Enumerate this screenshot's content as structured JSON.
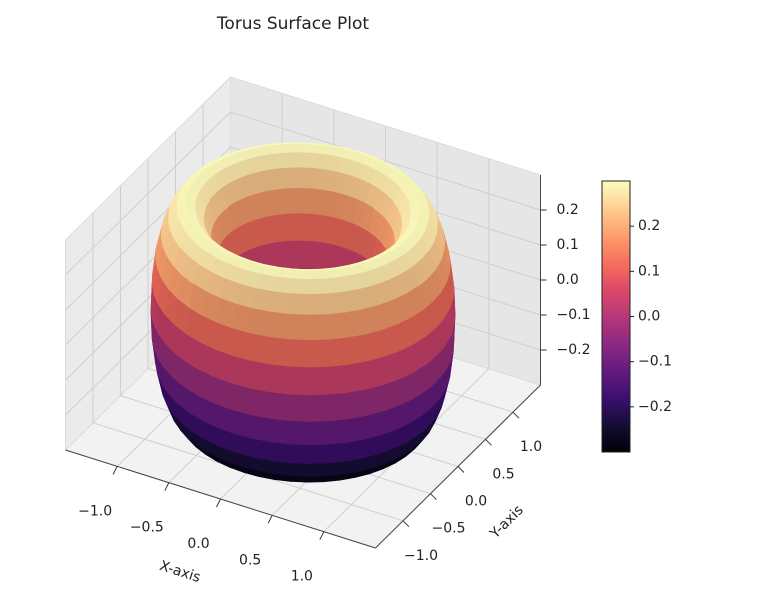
{
  "chart_data": {
    "type": "surface3d",
    "title": "Torus Surface Plot",
    "xlabel": "X-axis",
    "ylabel": "Y-axis",
    "surface": {
      "shape": "torus",
      "major_radius": 1,
      "minor_radius": 0.3
    },
    "colormap": "magma",
    "xlim": [
      -1.5,
      1.5
    ],
    "ylim": [
      -1.5,
      1.5
    ],
    "zlim": [
      -0.3,
      0.3
    ],
    "xticks": [
      {
        "value": -1,
        "label": "−1.0"
      },
      {
        "value": -0.5,
        "label": "−0.5"
      },
      {
        "value": 0,
        "label": "0.0"
      },
      0.5,
      {
        "value": 1,
        "label": "1.0"
      }
    ],
    "yticks": [
      {
        "value": -1,
        "label": "−1.0"
      },
      {
        "value": -0.5,
        "label": "−0.5"
      },
      {
        "value": 0,
        "label": "0.0"
      },
      0.5,
      {
        "value": 1,
        "label": "1.0"
      }
    ],
    "zticks": [
      {
        "value": -0.2,
        "label": "−0.2"
      },
      {
        "value": -0.1,
        "label": "−0.1"
      },
      {
        "value": 0,
        "label": "0.0"
      },
      0.1,
      0.2
    ],
    "colorbar": {
      "clim": [
        -0.3,
        0.3
      ],
      "ticks": [
        {
          "value": -0.2,
          "label": "−0.2"
        },
        {
          "value": -0.1,
          "label": "−0.1"
        },
        {
          "value": 0,
          "label": "0.0"
        },
        0.1,
        0.2
      ]
    },
    "grid": true
  }
}
